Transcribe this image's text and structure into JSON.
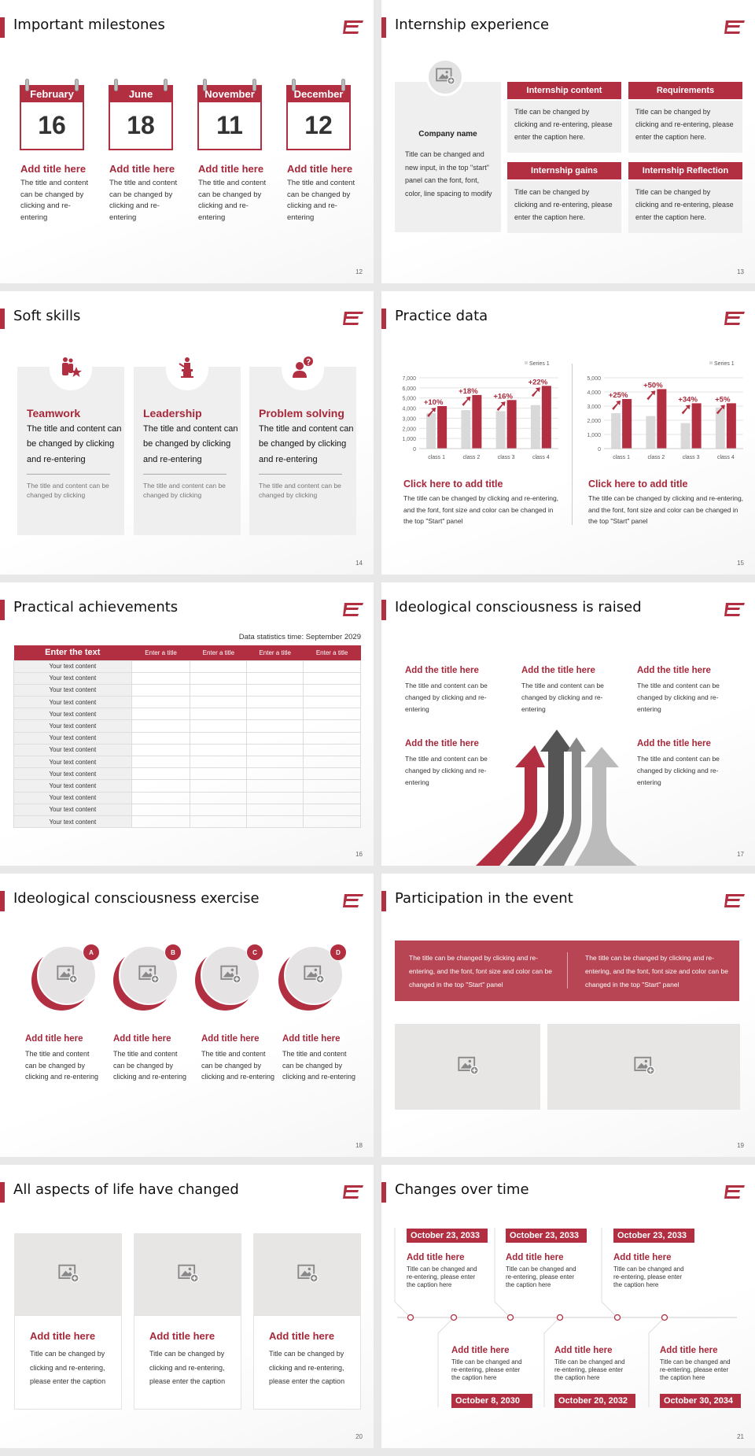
{
  "colors": {
    "accent": "#b22f42",
    "title_red": "#a6283a",
    "panel_gray": "#efefef",
    "series_gray": "#d9d9d9"
  },
  "slides": [
    {
      "page": "12",
      "title": "Important milestones",
      "calendars": [
        {
          "month": "February",
          "day": "16",
          "title": "Add title here",
          "text": "The title and content can be changed by clicking and re-entering"
        },
        {
          "month": "June",
          "day": "18",
          "title": "Add title here",
          "text": "The title and content can be changed by clicking and re-entering"
        },
        {
          "month": "November",
          "day": "11",
          "title": "Add title here",
          "text": "The title and content can be changed by clicking and re-entering"
        },
        {
          "month": "December",
          "day": "12",
          "title": "Add title here",
          "text": "The title and content can be changed by clicking and re-entering"
        }
      ]
    },
    {
      "page": "13",
      "title": "Internship experience",
      "company": {
        "name": "Company name",
        "text": "Title can be changed and new input, in the top \"start\" panel can the font, font, color, line spacing to modify"
      },
      "boxes": [
        {
          "header": "Internship content",
          "text": "Title can be changed by clicking and re-entering, please enter the caption here."
        },
        {
          "header": "Requirements",
          "text": "Title can be changed by clicking and re-entering, please enter the caption here."
        },
        {
          "header": "Internship gains",
          "text": "Title can be changed by clicking and re-entering, please enter the caption here."
        },
        {
          "header": "Internship Reflection",
          "text": "Title can be changed by clicking and re-entering, please enter the caption here."
        }
      ]
    },
    {
      "page": "14",
      "title": "Soft skills",
      "cards": [
        {
          "icon": "teamwork-icon",
          "title": "Teamwork",
          "text": "The title and content can be changed by clicking and re-entering",
          "note": "The title and content can be changed by clicking"
        },
        {
          "icon": "leadership-podium-icon",
          "title": "Leadership",
          "text": "The title and content can be changed by clicking and re-entering",
          "note": "The title and content can be changed by clicking"
        },
        {
          "icon": "problem-solving-icon",
          "title": "Problem solving",
          "text": "The title and content can be changed by clicking and re-entering",
          "note": "The title and content can be changed by clicking"
        }
      ]
    },
    {
      "page": "15",
      "title": "Practice data",
      "panels": [
        {
          "title": "Click here to add title",
          "text": "The title can be changed by clicking and re-entering, and the font, font size and color can be changed in the top \"Start\" panel"
        },
        {
          "title": "Click here to add title",
          "text": "The title can be changed by clicking and re-entering, and the font, font size and color can be changed in the top \"Start\" panel"
        }
      ]
    },
    {
      "page": "16",
      "title": "Practical achievements",
      "date": "Data statistics time: September 2029",
      "headers": [
        "Enter the text",
        "Enter a title",
        "Enter a title",
        "Enter a title",
        "Enter a title"
      ],
      "rows": [
        "Your text content",
        "Your text content",
        "Your text content",
        "Your text content",
        "Your text content",
        "Your text content",
        "Your text content",
        "Your text content",
        "Your text content",
        "Your text content",
        "Your text content",
        "Your text content",
        "Your text content",
        "Your text content"
      ]
    },
    {
      "page": "17",
      "title": "Ideological consciousness is raised",
      "items": [
        {
          "title": "Add the title here",
          "text": "The title and content can be changed by clicking and re-entering"
        },
        {
          "title": "Add the title here",
          "text": "The title and content can be changed by clicking and re-entering"
        },
        {
          "title": "Add the title here",
          "text": "The title and content can be changed by clicking and re-entering"
        },
        {
          "title": "Add the title here",
          "text": "The title and content can be changed by clicking and re-entering"
        },
        {
          "title": "Add the title here",
          "text": "The title and content can be changed by clicking and re-entering"
        }
      ]
    },
    {
      "page": "18",
      "title": "Ideological consciousness exercise",
      "items": [
        {
          "badge": "A",
          "title": "Add title here",
          "text": "The title and content can be changed by clicking and re-entering"
        },
        {
          "badge": "B",
          "title": "Add title here",
          "text": "The title and content can be changed by clicking and re-entering"
        },
        {
          "badge": "C",
          "title": "Add title here",
          "text": "The title and content can be changed by clicking and re-entering"
        },
        {
          "badge": "D",
          "title": "Add title here",
          "text": "The title and content can be changed by clicking and re-entering"
        }
      ]
    },
    {
      "page": "19",
      "title": "Participation in the event",
      "banner": [
        "The title can be changed by clicking and re-entering, and the font, font size and color can be changed in the top \"Start\" panel",
        "The title can be changed by clicking and re-entering, and the font, font size and color can be changed in the top \"Start\" panel"
      ]
    },
    {
      "page": "20",
      "title": "All aspects of life have changed",
      "cards": [
        {
          "title": "Add title here",
          "text": "Title can be changed by clicking and re-entering, please enter the caption"
        },
        {
          "title": "Add title here",
          "text": "Title can be changed by clicking and re-entering, please enter the caption"
        },
        {
          "title": "Add title here",
          "text": "Title can be changed by clicking and re-entering, please enter the caption"
        }
      ]
    },
    {
      "page": "21",
      "title": "Changes over time",
      "top": [
        {
          "date": "October 23, 2033",
          "title": "Add title here",
          "text": "Title can be changed and re-entering, please enter the caption here"
        },
        {
          "date": "October 23, 2033",
          "title": "Add title here",
          "text": "Title can be changed and re-entering, please enter the caption here"
        },
        {
          "date": "October 23, 2033",
          "title": "Add title here",
          "text": "Title can be changed and re-entering, please enter the caption here"
        }
      ],
      "bottom": [
        {
          "date": "October 8, 2030",
          "title": "Add title here",
          "text": "Title can be changed and re-entering, please enter the caption here"
        },
        {
          "date": "October 20, 2032",
          "title": "Add title here",
          "text": "Title can be changed and re-entering, please enter the caption here"
        },
        {
          "date": "October 30, 2034",
          "title": "Add title here",
          "text": "Title can be changed and re-entering, please enter the caption here"
        }
      ]
    }
  ],
  "chart_data": [
    {
      "type": "bar",
      "categories": [
        "class 1",
        "class 2",
        "class 3",
        "class 4"
      ],
      "series": [
        {
          "name": "Series 1",
          "values": [
            3500,
            3800,
            3700,
            4300
          ],
          "color": "#d9d9d9"
        },
        {
          "values": [
            4200,
            5300,
            4800,
            6200
          ],
          "color": "#b22f42"
        }
      ],
      "annotations": [
        "+10%",
        "+18%",
        "+16%",
        "+22%"
      ],
      "yticks": [
        "0",
        "1,000",
        "2,000",
        "3,000",
        "4,000",
        "5,000",
        "6,000",
        "7,000"
      ],
      "ylim": [
        0,
        7000
      ],
      "legend": "top-right",
      "grid": true
    },
    {
      "type": "bar",
      "categories": [
        "class 1",
        "class 2",
        "class 3",
        "class 4"
      ],
      "series": [
        {
          "name": "Series 1",
          "values": [
            2500,
            2300,
            1800,
            2900
          ],
          "color": "#d9d9d9"
        },
        {
          "values": [
            3500,
            4200,
            3200,
            3200
          ],
          "color": "#b22f42"
        }
      ],
      "annotations": [
        "+25%",
        "+50%",
        "+34%",
        "+5%"
      ],
      "yticks": [
        "0",
        "1,000",
        "2,000",
        "3,000",
        "4,000",
        "5,000"
      ],
      "ylim": [
        0,
        5000
      ],
      "legend": "top-right",
      "grid": true
    }
  ]
}
